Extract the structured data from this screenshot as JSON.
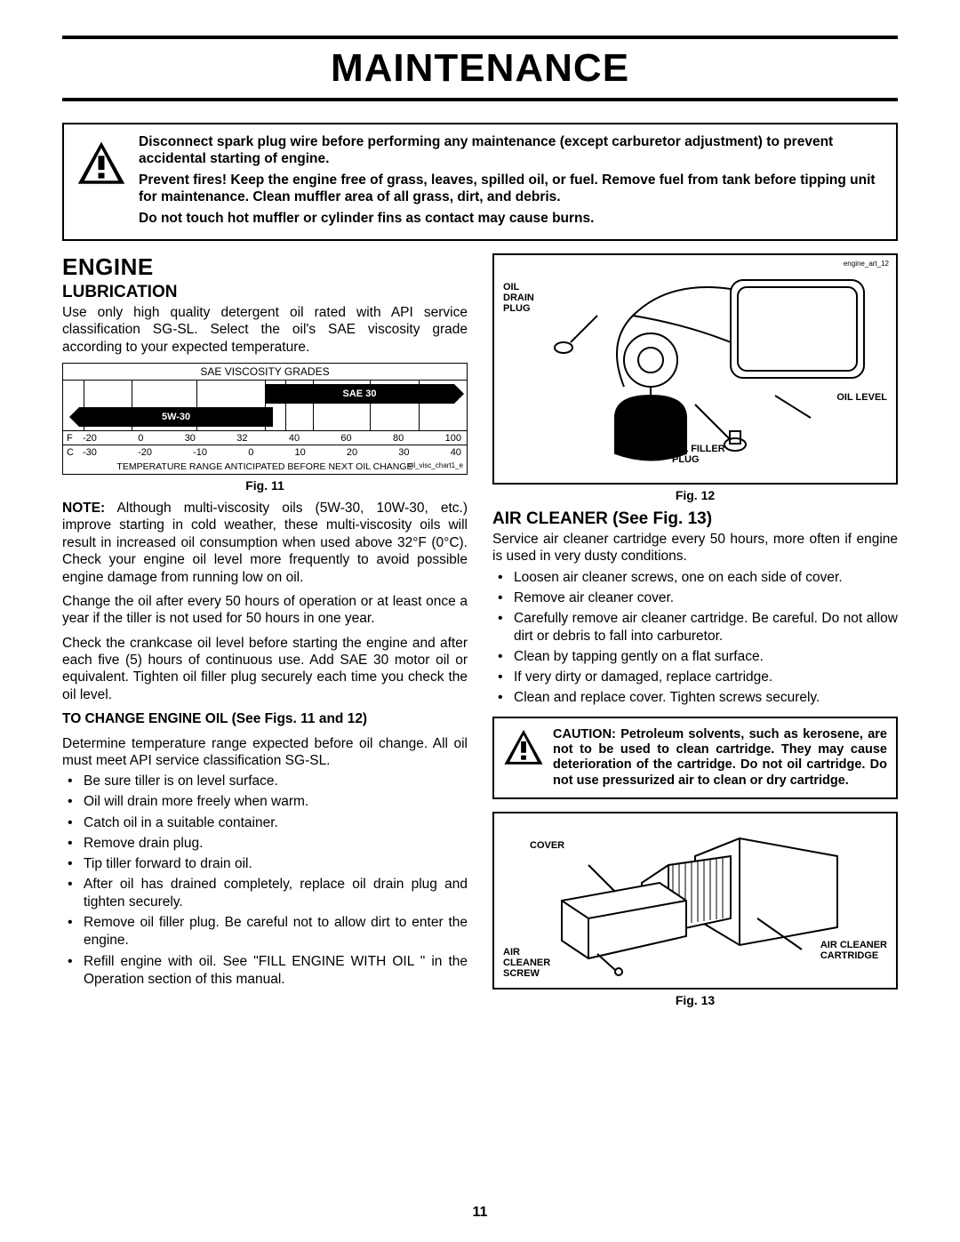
{
  "pageTitle": "MAINTENANCE",
  "pageNumber": "11",
  "topWarning": {
    "p1": "Disconnect spark plug wire before performing any maintenance (except carburetor adjustment) to prevent accidental starting of engine.",
    "p2": "Prevent fires!  Keep the engine free of grass, leaves, spilled oil, or fuel.  Remove fuel from tank before tipping unit for maintenance.  Clean muffler area of all grass, dirt, and debris.",
    "p3": "Do not touch hot muffler or cylinder fins as contact may cause burns."
  },
  "left": {
    "h2": "ENGINE",
    "h3": "LUBRICATION",
    "intro": "Use only high quality detergent oil rated with API service classification SG-SL.  Select the oil's SAE viscosity grade according to your expected temperature.",
    "viscosity": {
      "title": "SAE VISCOSITY GRADES",
      "bars": {
        "sae30": "SAE 30",
        "w530": "5W-30"
      },
      "colPercents": [
        5,
        17,
        33,
        50,
        55,
        62,
        76,
        88
      ],
      "scaleF": {
        "label": "F",
        "ticks": [
          "-20",
          "0",
          "30",
          "32",
          "40",
          "60",
          "80",
          "100"
        ]
      },
      "scaleC": {
        "label": "C",
        "ticks": [
          "-30",
          "-20",
          "-10",
          "0",
          "10",
          "20",
          "30",
          "40"
        ]
      },
      "footer": "TEMPERATURE RANGE ANTICIPATED BEFORE NEXT OIL CHANGE",
      "smallId": "oil_visc_chart1_e"
    },
    "fig11": "Fig. 11",
    "noteLead": "NOTE:",
    "note": " Although multi-viscosity oils (5W-30, 10W-30, etc.) improve starting in cold weather, these multi-viscosity oils will result in increased oil consumption when used above 32°F (0°C).  Check your engine oil level more frequently to avoid possible engine damage from running low on oil.",
    "p2": "Change the oil after every 50 hours of operation or at least once a year if the tiller is not used for 50 hours in one year.",
    "p3": "Check the crankcase oil level before starting the engine and after each five (5) hours of continuous use.  Add SAE 30 motor oil or equivalent.  Tighten oil filler plug securely each time you check the oil level.",
    "changeHeading": "TO CHANGE ENGINE OIL (See Figs. 11 and 12)",
    "changeIntro": "Determine temperature range expected before oil change.  All oil must  meet API service classification SG-SL.",
    "changeSteps": [
      "Be sure tiller is on level surface.",
      "Oil will drain more freely when warm.",
      "Catch oil in a suitable container.",
      "Remove drain plug.",
      "Tip tiller forward to drain oil.",
      "After oil has drained completely, replace oil drain plug and tighten securely.",
      "Remove oil filler plug.  Be careful not to allow dirt to enter the engine.",
      "Refill engine with oil.  See \"FILL ENGINE WITH OIL \" in the Operation section of this manual."
    ]
  },
  "right": {
    "fig12Labels": {
      "drain": "OIL\nDRAIN\nPLUG",
      "level": "OIL LEVEL",
      "filler": "OIL FILLER\nPLUG",
      "artId": "engine_art_12"
    },
    "fig12": "Fig. 12",
    "airHeading": "AIR CLEANER (See Fig. 13)",
    "airIntro": "Service  air cleaner cartridge every 50 hours, more often if engine is used in very dusty conditions.",
    "airSteps": [
      "Loosen air cleaner screws, one on each side of cover.",
      "Remove air cleaner cover.",
      "Carefully remove air cleaner cartridge. Be careful. Do not allow dirt or debris to fall into carburetor.",
      "Clean by tapping gently on a flat surface.",
      "If very dirty or damaged, replace cartridge.",
      "Clean and replace cover. Tighten screws securely."
    ],
    "caution": "CAUTION:  Petroleum solvents, such as kerosene, are not to be used to clean cartridge.  They may cause deterioration of the cartridge.  Do not oil cartridge.  Do not use pressurized air to clean or dry cartridge.",
    "fig13Labels": {
      "cover": "COVER",
      "screw": "AIR\nCLEANER\nSCREW",
      "cartridge": "AIR CLEANER\nCARTRIDGE"
    },
    "fig13": "Fig. 13"
  }
}
